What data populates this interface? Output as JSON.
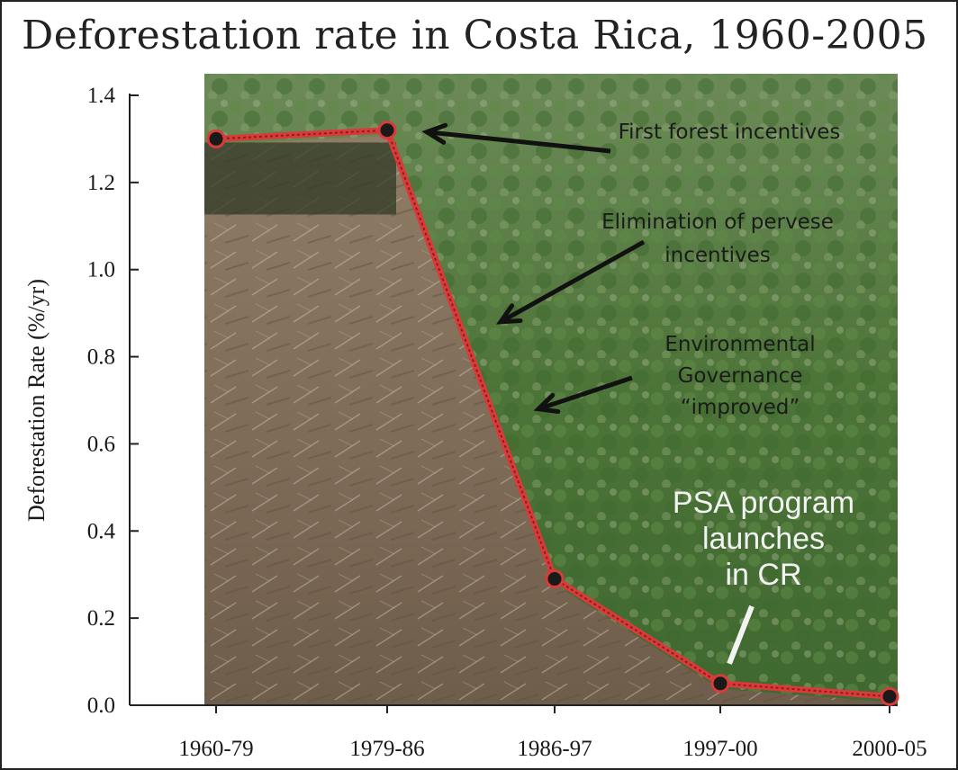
{
  "chart_data": {
    "type": "line",
    "title": "Deforestation rate in Costa Rica, 1960-2005",
    "ylabel": "Deforestation Rate (%/yr)",
    "xlabel": "",
    "categories": [
      "1960-79",
      "1979-86",
      "1986-97",
      "1997-00",
      "2000-05"
    ],
    "values": [
      1.3,
      1.32,
      0.29,
      0.05,
      0.02
    ],
    "ylim": [
      0,
      1.4
    ],
    "yticks": [
      "0.0",
      "0.2",
      "0.4",
      "0.6",
      "0.8",
      "1.0",
      "1.2",
      "1.4"
    ],
    "grid": false,
    "legend": "none",
    "line_color": "#d93a3a",
    "marker_color": "#1a1a1a",
    "annotations": [
      {
        "lines": [
          "First forest incentives"
        ],
        "target_category": "1979-86",
        "target_value": 1.32
      },
      {
        "lines": [
          "Elimination  of pervese",
          "incentives"
        ],
        "target_category": "1986-97",
        "target_value": 0.88
      },
      {
        "lines": [
          "Environmental",
          "Governance",
          "“improved”"
        ],
        "target_category": "1986-97",
        "target_value": 0.68
      },
      {
        "lines": [
          "PSA program",
          "launches",
          "in CR"
        ],
        "target_category": "1997-00",
        "target_value": 0.05
      }
    ]
  },
  "colors": {
    "forest": "#4f7a3c",
    "clearing": "#8a7661",
    "annotation_text": "#1b1b1b",
    "psa_text": "#f2f2f2"
  }
}
